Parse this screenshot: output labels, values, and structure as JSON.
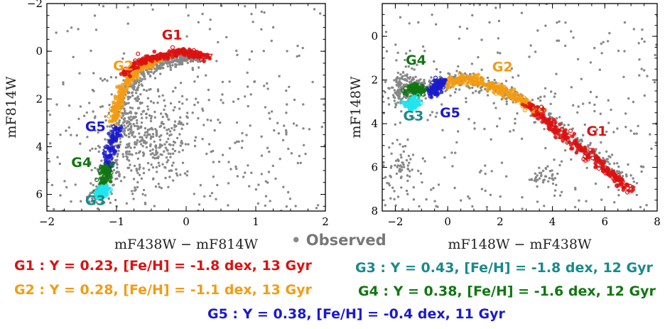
{
  "chart_data": [
    {
      "type": "scatter",
      "title": "",
      "xlabel": "mF438W − mF814W",
      "ylabel": "mF814W",
      "xlim": [
        -2,
        2
      ],
      "ylim": [
        6.7,
        -2
      ],
      "y_inverted": true,
      "xticks": [
        "−2",
        "−1",
        "0",
        "1",
        "2"
      ],
      "xtick_values": [
        -2,
        -1,
        0,
        1,
        2
      ],
      "yticks": [
        "−2",
        "0",
        "2",
        "4",
        "6"
      ],
      "ytick_values": [
        -2,
        0,
        2,
        4,
        6
      ],
      "group_labels": [
        {
          "name": "G1",
          "x": -0.35,
          "y": -0.5
        },
        {
          "name": "G2",
          "x": -1.05,
          "y": 0.8
        },
        {
          "name": "G5",
          "x": -1.45,
          "y": 3.35
        },
        {
          "name": "G4",
          "x": -1.65,
          "y": 4.85
        },
        {
          "name": "G3",
          "x": -1.45,
          "y": 6.45
        }
      ],
      "series": [
        {
          "name": "G1",
          "color": "#dd1111",
          "x": [
            -0.9,
            -0.8,
            -0.7,
            -0.6,
            -0.5,
            -0.4,
            -0.3,
            -0.2,
            -0.1,
            0.0,
            0.1,
            0.2,
            0.3
          ],
          "y": [
            1.0,
            0.75,
            0.55,
            0.4,
            0.3,
            0.2,
            0.15,
            0.1,
            0.05,
            0.05,
            0.1,
            0.2,
            0.3
          ]
        },
        {
          "name": "G2",
          "color": "#f39c12",
          "x": [
            -1.05,
            -1.0,
            -0.95,
            -0.9,
            -0.8,
            -0.7,
            -0.6,
            -0.5,
            -0.4,
            -0.3
          ],
          "y": [
            3.0,
            2.5,
            2.0,
            1.5,
            1.1,
            0.8,
            0.6,
            0.45,
            0.35,
            0.25
          ]
        },
        {
          "name": "G5",
          "color": "#1a1acc",
          "x": [
            -1.0,
            -1.02,
            -1.05,
            -1.08,
            -1.1,
            -1.12,
            -1.15
          ],
          "y": [
            3.2,
            3.5,
            3.8,
            4.1,
            4.4,
            4.7,
            5.0
          ]
        },
        {
          "name": "G4",
          "color": "#117711",
          "x": [
            -1.12,
            -1.15,
            -1.18,
            -1.2,
            -1.22
          ],
          "y": [
            4.8,
            5.1,
            5.4,
            5.7,
            5.9
          ]
        },
        {
          "name": "G3",
          "color": "#22e5ee",
          "x": [
            -1.15,
            -1.2,
            -1.25,
            -1.28
          ],
          "y": [
            5.7,
            5.85,
            6.0,
            6.1
          ]
        }
      ]
    },
    {
      "type": "scatter",
      "title": "",
      "xlabel": "mF148W − mF438W",
      "ylabel": "mF148W",
      "xlim": [
        -2.5,
        8
      ],
      "ylim": [
        8.0,
        -1.5
      ],
      "y_inverted": true,
      "xticks": [
        "−2",
        "0",
        "2",
        "4",
        "6",
        "8"
      ],
      "xtick_values": [
        -2,
        0,
        2,
        4,
        6,
        8
      ],
      "yticks": [
        "0",
        "2",
        "4",
        "6",
        "8"
      ],
      "ytick_values": [
        0,
        2,
        4,
        6,
        8
      ],
      "group_labels": [
        {
          "name": "G4",
          "x": -1.6,
          "y": 1.3
        },
        {
          "name": "G2",
          "x": 1.7,
          "y": 1.6
        },
        {
          "name": "G3",
          "x": -1.7,
          "y": 3.85
        },
        {
          "name": "G5",
          "x": -0.3,
          "y": 3.7
        },
        {
          "name": "G1",
          "x": 5.3,
          "y": 4.55
        }
      ],
      "series": [
        {
          "name": "G1",
          "color": "#dd1111",
          "x": [
            3.0,
            3.5,
            4.0,
            4.5,
            5.0,
            5.5,
            6.0,
            6.5,
            7.0
          ],
          "y": [
            3.1,
            3.6,
            4.1,
            4.6,
            5.1,
            5.6,
            6.1,
            6.6,
            7.1
          ]
        },
        {
          "name": "G2",
          "color": "#f39c12",
          "x": [
            0.0,
            0.5,
            1.0,
            1.5,
            2.0,
            2.5,
            3.0,
            3.5
          ],
          "y": [
            2.2,
            1.95,
            2.0,
            2.2,
            2.45,
            2.7,
            3.1,
            3.5
          ]
        },
        {
          "name": "G5",
          "color": "#1a1acc",
          "x": [
            -0.6,
            -0.5,
            -0.4,
            -0.3,
            -0.2
          ],
          "y": [
            2.6,
            2.5,
            2.3,
            2.2,
            2.1
          ]
        },
        {
          "name": "G4",
          "color": "#117711",
          "x": [
            -1.5,
            -1.3,
            -1.1,
            -0.9
          ],
          "y": [
            2.5,
            2.3,
            2.6,
            2.4
          ]
        },
        {
          "name": "G3",
          "color": "#22e5ee",
          "x": [
            -1.5,
            -1.4,
            -1.3,
            -1.2
          ],
          "y": [
            3.2,
            3.1,
            3.15,
            3.0
          ]
        }
      ]
    }
  ],
  "observed_label": "Observed",
  "legend": {
    "g1": "G1 : Y = 0.23, [Fe/H] = -1.8 dex, 13 Gyr",
    "g2": "G2 : Y = 0.28, [Fe/H] = -1.1 dex, 13 Gyr",
    "g3": "G3 : Y = 0.43, [Fe/H] = -1.8 dex, 12 Gyr",
    "g4": "G4 : Y = 0.38, [Fe/H] = -1.6 dex, 12 Gyr",
    "g5": "G5 : Y = 0.38, [Fe/H] = -0.4 dex, 11 Gyr"
  },
  "colors": {
    "G1": "#dd1111",
    "G2": "#f39c12",
    "G3": "#1a8a8a",
    "G4": "#117711",
    "G5": "#1a1acc",
    "G3_points": "#22e5ee",
    "observed": "#888888"
  }
}
